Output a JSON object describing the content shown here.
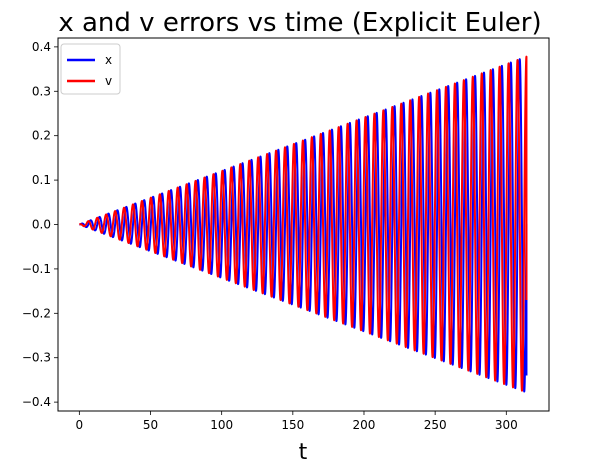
{
  "chart_data": {
    "type": "line",
    "title": "x and v errors vs time (Explicit Euler)",
    "xlabel": "t",
    "ylabel": "",
    "xlim": [
      -15,
      330
    ],
    "ylim": [
      -0.42,
      0.42
    ],
    "xticks": [
      0,
      50,
      100,
      150,
      200,
      250,
      300
    ],
    "yticks": [
      -0.4,
      -0.3,
      -0.2,
      -0.1,
      0.0,
      0.1,
      0.2,
      0.3,
      0.4
    ],
    "ytick_labels": [
      "−0.4",
      "−0.3",
      "−0.2",
      "−0.1",
      "0.0",
      "0.1",
      "0.2",
      "0.3",
      "0.4"
    ],
    "grid": false,
    "legend_position": "top-left",
    "series": [
      {
        "name": "x",
        "color": "#0000ff",
        "t_range": [
          0,
          314.16
        ],
        "envelope": {
          "t": [
            0,
            314.16
          ],
          "amplitude": [
            0.0,
            0.378
          ]
        },
        "oscillation_period": 6.2832,
        "phase": "sin",
        "end_value": -0.34
      },
      {
        "name": "v",
        "color": "#ff0000",
        "t_range": [
          0,
          314.16
        ],
        "envelope": {
          "t": [
            0,
            314.16
          ],
          "amplitude": [
            0.0,
            0.378
          ]
        },
        "oscillation_period": 6.2832,
        "phase": "cos",
        "end_value": -0.17
      }
    ]
  }
}
